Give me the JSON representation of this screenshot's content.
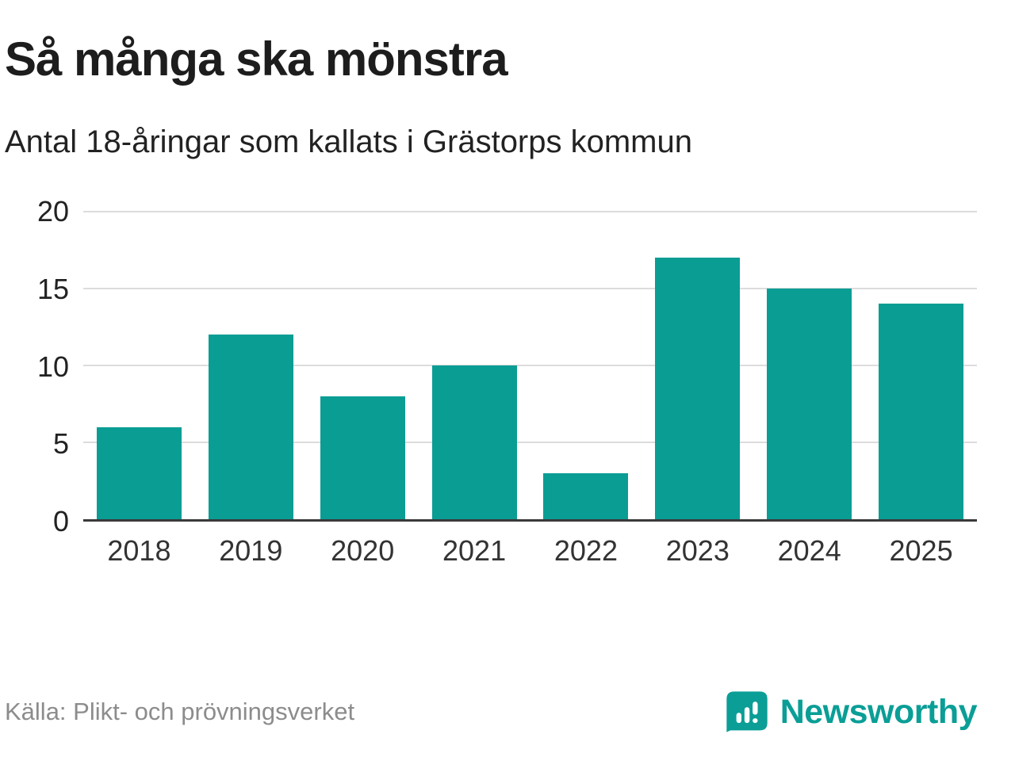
{
  "header": {
    "title": "Så många ska mönstra",
    "subtitle": "Antal 18-åringar som kallats i Grästorps kommun"
  },
  "footer": {
    "source": "Källa: Plikt- och prövningsverket",
    "brand_name": "Newsworthy"
  },
  "colors": {
    "bar": "#0a9d94",
    "brand": "#0a9e96",
    "grid": "#dcdcdc",
    "axis": "#3a3a3a",
    "text": "#222222",
    "muted": "#8c8c8c"
  },
  "chart_data": {
    "type": "bar",
    "categories": [
      "2018",
      "2019",
      "2020",
      "2021",
      "2022",
      "2023",
      "2024",
      "2025"
    ],
    "values": [
      6,
      12,
      8,
      10,
      3,
      17,
      15,
      14
    ],
    "title": "Så många ska mönstra",
    "subtitle": "Antal 18-åringar som kallats i Grästorps kommun",
    "xlabel": "",
    "ylabel": "",
    "ylim": [
      0,
      20
    ],
    "yticks": [
      0,
      5,
      10,
      15,
      20
    ],
    "grid": true,
    "legend": false,
    "bar_color": "#0a9d94"
  }
}
